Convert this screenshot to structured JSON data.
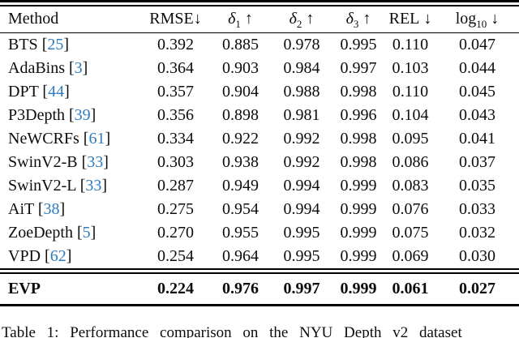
{
  "table": {
    "columns": [
      {
        "pre": "Method",
        "sub": "",
        "arrow": "",
        "italic": false,
        "tight": false,
        "key": "method"
      },
      {
        "pre": "RMSE",
        "sub": "",
        "arrow": "↓",
        "italic": false,
        "tight": true,
        "key": "rmse"
      },
      {
        "pre": "δ",
        "sub": "1",
        "arrow": "↑",
        "italic": true,
        "tight": false,
        "key": "delta1"
      },
      {
        "pre": "δ",
        "sub": "2",
        "arrow": "↑",
        "italic": true,
        "tight": false,
        "key": "delta2"
      },
      {
        "pre": "δ",
        "sub": "3",
        "arrow": "↑",
        "italic": true,
        "tight": false,
        "key": "delta3"
      },
      {
        "pre": "REL",
        "sub": "",
        "arrow": "↓",
        "italic": false,
        "tight": false,
        "key": "rel"
      },
      {
        "pre": "log",
        "sub": "10",
        "arrow": "↓",
        "italic": false,
        "tight": false,
        "key": "log10"
      }
    ],
    "rows": [
      {
        "method": "BTS",
        "cite": "25",
        "values": [
          "0.392",
          "0.885",
          "0.978",
          "0.995",
          "0.110",
          "0.047"
        ]
      },
      {
        "method": "AdaBins",
        "cite": "3",
        "values": [
          "0.364",
          "0.903",
          "0.984",
          "0.997",
          "0.103",
          "0.044"
        ]
      },
      {
        "method": "DPT",
        "cite": "44",
        "values": [
          "0.357",
          "0.904",
          "0.988",
          "0.998",
          "0.110",
          "0.045"
        ]
      },
      {
        "method": "P3Depth",
        "cite": "39",
        "values": [
          "0.356",
          "0.898",
          "0.981",
          "0.996",
          "0.104",
          "0.043"
        ]
      },
      {
        "method": "NeWCRFs",
        "cite": "61",
        "values": [
          "0.334",
          "0.922",
          "0.992",
          "0.998",
          "0.095",
          "0.041"
        ]
      },
      {
        "method": "SwinV2-B",
        "cite": "33",
        "values": [
          "0.303",
          "0.938",
          "0.992",
          "0.998",
          "0.086",
          "0.037"
        ]
      },
      {
        "method": "SwinV2-L",
        "cite": "33",
        "values": [
          "0.287",
          "0.949",
          "0.994",
          "0.999",
          "0.083",
          "0.035"
        ]
      },
      {
        "method": "AiT",
        "cite": "38",
        "values": [
          "0.275",
          "0.954",
          "0.994",
          "0.999",
          "0.076",
          "0.033"
        ]
      },
      {
        "method": "ZoeDepth",
        "cite": "5",
        "values": [
          "0.270",
          "0.955",
          "0.995",
          "0.999",
          "0.075",
          "0.032"
        ]
      },
      {
        "method": "VPD",
        "cite": "62",
        "values": [
          "0.254",
          "0.964",
          "0.995",
          "0.999",
          "0.069",
          "0.030"
        ]
      }
    ],
    "highlight_row": {
      "method": "EVP",
      "cite": "",
      "values": [
        "0.224",
        "0.976",
        "0.997",
        "0.999",
        "0.061",
        "0.027"
      ]
    }
  },
  "caption": "Table 1: Performance comparison on the NYU Depth v2 dataset",
  "colors": {
    "citation_link": "#2d7cbf",
    "text": "#0c0c0c",
    "rule": "#000000"
  }
}
